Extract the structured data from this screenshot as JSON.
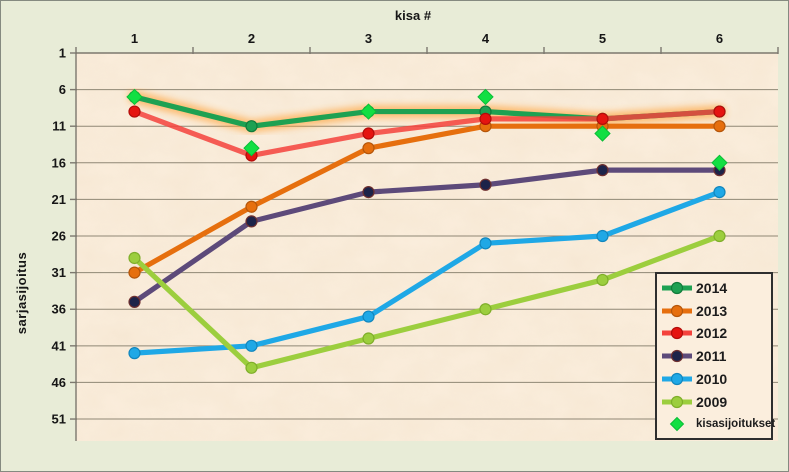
{
  "window": {
    "background": "#e8ecd7",
    "plot_background": "#fbeedd",
    "gridline_color": "#8f8775",
    "axis_color": "#7c786e",
    "text_color": "#161616",
    "legend_border_color": "#2e2e2e"
  },
  "chart_data": {
    "type": "line",
    "xlabel": "kisa #",
    "ylabel": "sarjasijoitus",
    "x": [
      1,
      2,
      3,
      4,
      5,
      6
    ],
    "y_ticks": [
      1,
      6,
      11,
      16,
      21,
      26,
      31,
      36,
      41,
      46,
      51
    ],
    "y_axis_reversed": true,
    "ylim": [
      1,
      54
    ],
    "grid": true,
    "legend_position": "bottom-right",
    "series": [
      {
        "name": "2014",
        "color": "#1ea152",
        "marker": "circle",
        "marker_color": "#1ea152",
        "marker_stroke": "#117a3a",
        "values": [
          7,
          11,
          9,
          9,
          10,
          9
        ],
        "glow": "#ff9e2e"
      },
      {
        "name": "2013",
        "color": "#e66f0e",
        "marker": "circle",
        "marker_color": "#e66f0e",
        "marker_stroke": "#b5560a",
        "values": [
          31,
          22,
          14,
          11,
          11,
          11
        ]
      },
      {
        "name": "2012",
        "color": "#f4423c",
        "marker": "circle",
        "marker_color": "#e51410",
        "marker_stroke": "#b30d0a",
        "line_opacity": 0.85,
        "values": [
          9,
          15,
          12,
          10,
          10,
          9
        ]
      },
      {
        "name": "2011",
        "color": "#5d4a7a",
        "marker": "circle",
        "marker_color": "#1c2349",
        "marker_stroke": "#6e2f2f",
        "values": [
          35,
          24,
          20,
          19,
          17,
          17
        ]
      },
      {
        "name": "2010",
        "color": "#1fa8e6",
        "marker": "circle",
        "marker_color": "#1fa8e6",
        "marker_stroke": "#1286bd",
        "values": [
          42,
          41,
          37,
          27,
          26,
          20
        ]
      },
      {
        "name": "2009",
        "color": "#9cce3e",
        "marker": "circle",
        "marker_color": "#9cce3e",
        "marker_stroke": "#7fae2a",
        "values": [
          29,
          44,
          40,
          36,
          32,
          26
        ]
      },
      {
        "name": "kisasijoitukset",
        "color": "#12df43",
        "marker": "diamond",
        "marker_color": "#12df43",
        "marker_stroke": "#0bbd36",
        "line": false,
        "values": [
          7,
          14,
          9,
          7,
          12,
          16
        ]
      }
    ]
  }
}
